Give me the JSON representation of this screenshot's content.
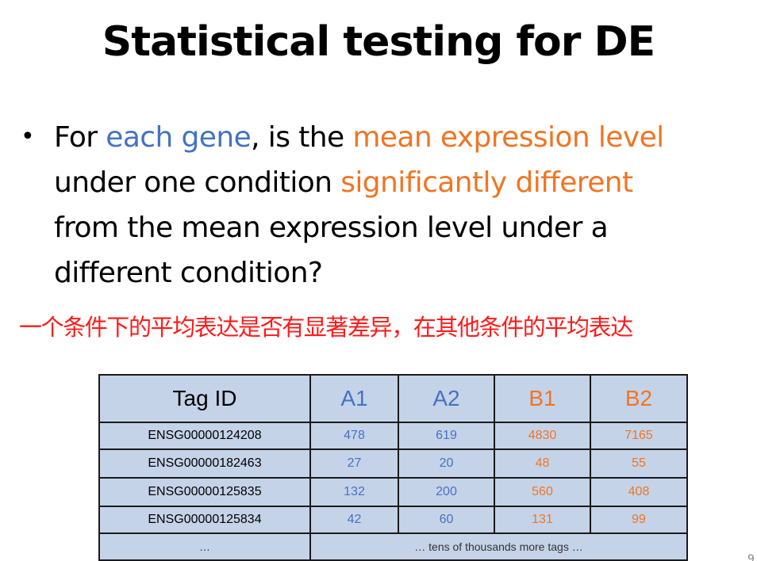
{
  "title": "Statistical testing for DE",
  "bullet": {
    "line1": {
      "p1": "For ",
      "p2": "each gene",
      "p3": ", is the ",
      "p4": "mean expression level"
    },
    "line2": {
      "p1": "under one condition ",
      "p2": "significantly different"
    },
    "line3": "from the mean expression level under a",
    "line4": "different condition?"
  },
  "chinese_note": "一个条件下的平均表达是否有显著差异，在其他条件的平均表达",
  "colors": {
    "blue": "#4472c4",
    "orange": "#f07523",
    "red": "#ff1a1a",
    "table_bg": "#c5d3e8"
  },
  "table": {
    "headers": [
      "Tag ID",
      "A1",
      "A2",
      "B1",
      "B2"
    ],
    "rows": [
      [
        "ENSG00000124208",
        "478",
        "619",
        "4830",
        "7165"
      ],
      [
        "ENSG00000182463",
        "27",
        "20",
        "48",
        "55"
      ],
      [
        "ENSG00000125835",
        "132",
        "200",
        "560",
        "408"
      ],
      [
        "ENSG00000125834",
        "42",
        "60",
        "131",
        "99"
      ]
    ],
    "footer": {
      "tag": "…",
      "note": "… tens of thousands more tags …"
    }
  },
  "slide_number": "9"
}
